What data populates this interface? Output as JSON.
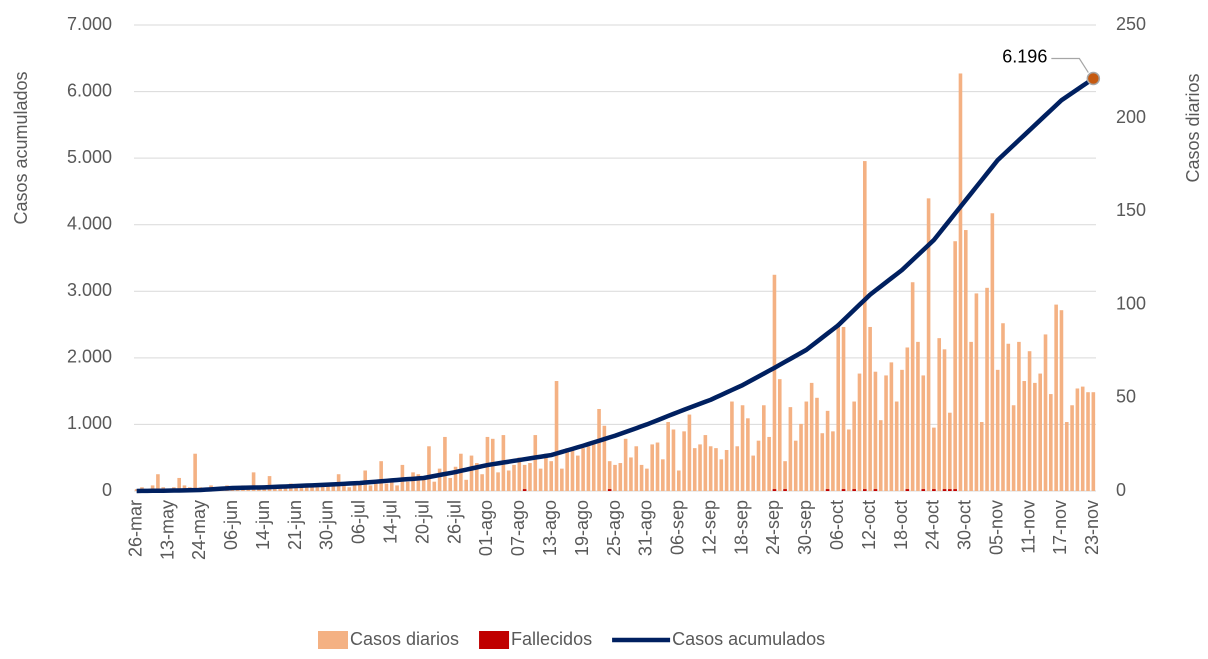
{
  "chart_data": {
    "type": "bar-line",
    "y_label": "Casos acumulados",
    "y2_label": "Casos  diarios",
    "ylim": [
      0,
      7000
    ],
    "yticks": [
      0,
      {
        "value": 1000,
        "label": "1.000"
      },
      {
        "value": 2000,
        "label": "2.000"
      },
      {
        "value": 3000,
        "label": "3.000"
      },
      {
        "value": 4000,
        "label": "4.000"
      },
      {
        "value": 5000,
        "label": "5.000"
      },
      {
        "value": 6000,
        "label": "6.000"
      },
      {
        "value": 7000,
        "label": "7.000"
      }
    ],
    "y2lim": [
      0,
      250
    ],
    "y2ticks": [
      0,
      50,
      100,
      150,
      200,
      250
    ],
    "grid": true,
    "legend": "bottom",
    "categories": [
      "26-mar",
      null,
      null,
      null,
      null,
      null,
      "13-may",
      null,
      null,
      null,
      null,
      null,
      "24-may",
      null,
      null,
      null,
      null,
      null,
      "06-jun",
      null,
      null,
      null,
      null,
      null,
      "14-jun",
      null,
      null,
      null,
      null,
      null,
      "21-jun",
      null,
      null,
      null,
      null,
      null,
      "30-jun",
      null,
      null,
      null,
      null,
      null,
      "06-jul",
      null,
      null,
      null,
      null,
      null,
      "14-jul",
      null,
      null,
      null,
      null,
      null,
      "20-jul",
      null,
      null,
      null,
      null,
      null,
      "26-jul",
      null,
      null,
      null,
      null,
      null,
      "01-ago",
      null,
      null,
      null,
      null,
      null,
      "07-ago",
      null,
      null,
      null,
      null,
      null,
      "13-ago",
      null,
      null,
      null,
      null,
      null,
      "19-ago",
      null,
      null,
      null,
      null,
      null,
      "25-ago",
      null,
      null,
      null,
      null,
      null,
      "31-ago",
      null,
      null,
      null,
      null,
      null,
      "06-sep",
      null,
      null,
      null,
      null,
      null,
      "12-sep",
      null,
      null,
      null,
      null,
      null,
      "18-sep",
      null,
      null,
      null,
      null,
      null,
      "24-sep",
      null,
      null,
      null,
      null,
      null,
      "30-sep",
      null,
      null,
      null,
      null,
      null,
      "06-oct",
      null,
      null,
      null,
      null,
      null,
      "12-oct",
      null,
      null,
      null,
      null,
      null,
      "18-oct",
      null,
      null,
      null,
      null,
      null,
      "24-oct",
      null,
      null,
      null,
      null,
      null,
      "30-oct",
      null,
      null,
      null,
      null,
      null,
      "05-nov",
      null,
      null,
      null,
      null,
      null,
      "11-nov",
      null,
      null,
      null,
      null,
      null,
      "17-nov",
      null,
      null,
      null,
      null,
      null,
      "23-nov"
    ],
    "series": [
      {
        "name": "Casos diarios",
        "type": "bar",
        "axis": "y2",
        "color": "#f4b183",
        "values": [
          1,
          2,
          1,
          3,
          9,
          2,
          1,
          2,
          7,
          3,
          2,
          20,
          2,
          1,
          3,
          2,
          1,
          3,
          2,
          1,
          3,
          2,
          10,
          3,
          2,
          8,
          3,
          2,
          3,
          4,
          3,
          2,
          4,
          3,
          2,
          4,
          3,
          4,
          9,
          3,
          2,
          5,
          4,
          11,
          3,
          5,
          16,
          4,
          6,
          3,
          14,
          5,
          10,
          9,
          8,
          24,
          5,
          12,
          29,
          7,
          13,
          20,
          6,
          19,
          15,
          9,
          29,
          28,
          10,
          30,
          11,
          14,
          18,
          14,
          15,
          30,
          12,
          20,
          16,
          59,
          12,
          23,
          22,
          19,
          23,
          24,
          27,
          44,
          35,
          16,
          14,
          15,
          28,
          18,
          24,
          14,
          12,
          25,
          26,
          17,
          37,
          33,
          11,
          32,
          41,
          23,
          25,
          30,
          24,
          23,
          17,
          22,
          48,
          24,
          46,
          39,
          19,
          27,
          46,
          29,
          116,
          60,
          16,
          45,
          27,
          36,
          48,
          58,
          50,
          31,
          43,
          32,
          90,
          88,
          33,
          48,
          63,
          177,
          88,
          64,
          38,
          62,
          69,
          48,
          65,
          77,
          112,
          80,
          62,
          157,
          34,
          82,
          76,
          42,
          134,
          224,
          140,
          80,
          106,
          37,
          109,
          149,
          65,
          90,
          79,
          46,
          80,
          59,
          75,
          58,
          63,
          84,
          52,
          100,
          97,
          37,
          46,
          55,
          56,
          53,
          53
        ]
      },
      {
        "name": "Fallecidos",
        "type": "bar",
        "axis": "y2",
        "color": "#c00000",
        "values": [
          0,
          0,
          0,
          0,
          0,
          0,
          0,
          0,
          0,
          0,
          0,
          0,
          0,
          0,
          0,
          0,
          0,
          0,
          0,
          0,
          0,
          0,
          0,
          0,
          0,
          0,
          0,
          0,
          0,
          0,
          0,
          0,
          0,
          0,
          0,
          0,
          0,
          0,
          0,
          0,
          0,
          0,
          0,
          0,
          0,
          0,
          0,
          0,
          0,
          0,
          0,
          0,
          0,
          0,
          0,
          0,
          0,
          0,
          0,
          0,
          0,
          0,
          0,
          0,
          0,
          0,
          0,
          0,
          0,
          0,
          0,
          0,
          0,
          1,
          0,
          0,
          0,
          0,
          0,
          0,
          0,
          0,
          0,
          0,
          0,
          0,
          0,
          0,
          0,
          1,
          0,
          0,
          0,
          0,
          0,
          0,
          0,
          0,
          0,
          0,
          0,
          0,
          0,
          0,
          0,
          0,
          0,
          0,
          0,
          0,
          0,
          0,
          0,
          0,
          0,
          0,
          0,
          0,
          0,
          0,
          1,
          0,
          1,
          0,
          0,
          0,
          0,
          0,
          0,
          0,
          1,
          0,
          0,
          1,
          0,
          1,
          0,
          1,
          0,
          1,
          0,
          0,
          0,
          0,
          0,
          1,
          0,
          0,
          1,
          0,
          1,
          0,
          1,
          1,
          1,
          0,
          0,
          0,
          0,
          0,
          0,
          0,
          0,
          0,
          0,
          0,
          0,
          0,
          0,
          0,
          0,
          0,
          0,
          0,
          0,
          0,
          0,
          0,
          0,
          0,
          0
        ]
      },
      {
        "name": "Casos acumulados",
        "type": "line",
        "color": "#002060",
        "values": [
          0,
          1,
          2,
          3,
          3,
          4,
          5,
          7,
          8,
          10,
          12,
          13,
          15,
          20,
          25,
          30,
          35,
          40,
          45,
          47,
          48,
          50,
          52,
          53,
          55,
          58,
          62,
          65,
          68,
          72,
          75,
          78,
          82,
          85,
          88,
          92,
          95,
          99,
          103,
          108,
          112,
          116,
          120,
          127,
          133,
          140,
          147,
          153,
          160,
          166,
          172,
          178,
          183,
          189,
          195,
          210,
          225,
          240,
          255,
          270,
          285,
          303,
          320,
          338,
          355,
          373,
          390,
          403,
          415,
          428,
          440,
          453,
          465,
          478,
          490,
          503,
          515,
          528,
          540,
          563,
          587,
          610,
          633,
          657,
          680,
          705,
          730,
          755,
          780,
          805,
          830,
          858,
          887,
          915,
          943,
          972,
          1000,
          1032,
          1063,
          1095,
          1127,
          1158,
          1190,
          1220,
          1250,
          1280,
          1310,
          1340,
          1370,
          1407,
          1443,
          1480,
          1517,
          1553,
          1590,
          1633,
          1677,
          1720,
          1763,
          1807,
          1850,
          1895,
          1940,
          1985,
          2030,
          2075,
          2120,
          2182,
          2243,
          2305,
          2367,
          2428,
          2490,
          2567,
          2643,
          2720,
          2797,
          2873,
          2950,
          3012,
          3073,
          3135,
          3197,
          3258,
          3320,
          3395,
          3470,
          3545,
          3620,
          3695,
          3770,
          3870,
          3970,
          4070,
          4170,
          4270,
          4370,
          4470,
          4570,
          4670,
          4770,
          4870,
          4970,
          5045,
          5120,
          5195,
          5270,
          5345,
          5420,
          5495,
          5570,
          5645,
          5720,
          5795,
          5870,
          5924,
          5978,
          6033,
          6087,
          6141,
          6196
        ],
        "value_labels": [
          null,
          null,
          null,
          null,
          null,
          null,
          null,
          null,
          null,
          null,
          null,
          null,
          null,
          null,
          null,
          null,
          null,
          null,
          null,
          null,
          null,
          null,
          null,
          null,
          null,
          null,
          null,
          null,
          null,
          null,
          null,
          null,
          null,
          null,
          null,
          null,
          null,
          null,
          null,
          null,
          null,
          null,
          null,
          null,
          null,
          null,
          null,
          null,
          null,
          null,
          null,
          null,
          null,
          null,
          null,
          null,
          null,
          null,
          null,
          null,
          null,
          null,
          null,
          null,
          null,
          null,
          null,
          null,
          null,
          null,
          null,
          null,
          null,
          null,
          null,
          null,
          null,
          null,
          null,
          null,
          null,
          null,
          null,
          null,
          null,
          null,
          null,
          null,
          null,
          null,
          null,
          null,
          null,
          null,
          null,
          null,
          null,
          null,
          null,
          null,
          null,
          null,
          null,
          null,
          null,
          null,
          null,
          null,
          null,
          null,
          null,
          null,
          null,
          null,
          null,
          null,
          null,
          null,
          null,
          null,
          null,
          null,
          null,
          null,
          null,
          null,
          null,
          null,
          null,
          null,
          null,
          null,
          null,
          null,
          null,
          null,
          null,
          null,
          null,
          null,
          null,
          null,
          null,
          null,
          null,
          null,
          null,
          null,
          null,
          null,
          null,
          null,
          null,
          null,
          null,
          null,
          null,
          null,
          null,
          null,
          null,
          null,
          null,
          null,
          null,
          null,
          null,
          null,
          null,
          null,
          null,
          null,
          null,
          null,
          null,
          null,
          null,
          null,
          null,
          null,
          "6.196"
        ]
      }
    ]
  }
}
